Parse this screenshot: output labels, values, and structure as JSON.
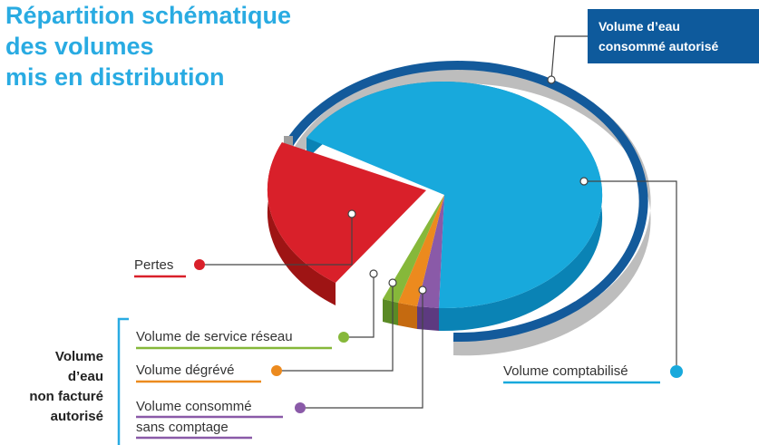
{
  "title": [
    "Répartition schématique",
    "des volumes",
    "mis en distribution"
  ],
  "callout": [
    "Volume d’eau",
    "consommé autorisé"
  ],
  "group_label": [
    "Volume",
    "d’eau",
    "non facturé",
    "autorisé"
  ],
  "labels": {
    "pertes": "Pertes",
    "service": "Volume de service réseau",
    "degreve": "Volume dégrévé",
    "sans_comptage": [
      "Volume consommé",
      "sans comptage"
    ],
    "comptabilise": "Volume comptabilisé"
  }
}
